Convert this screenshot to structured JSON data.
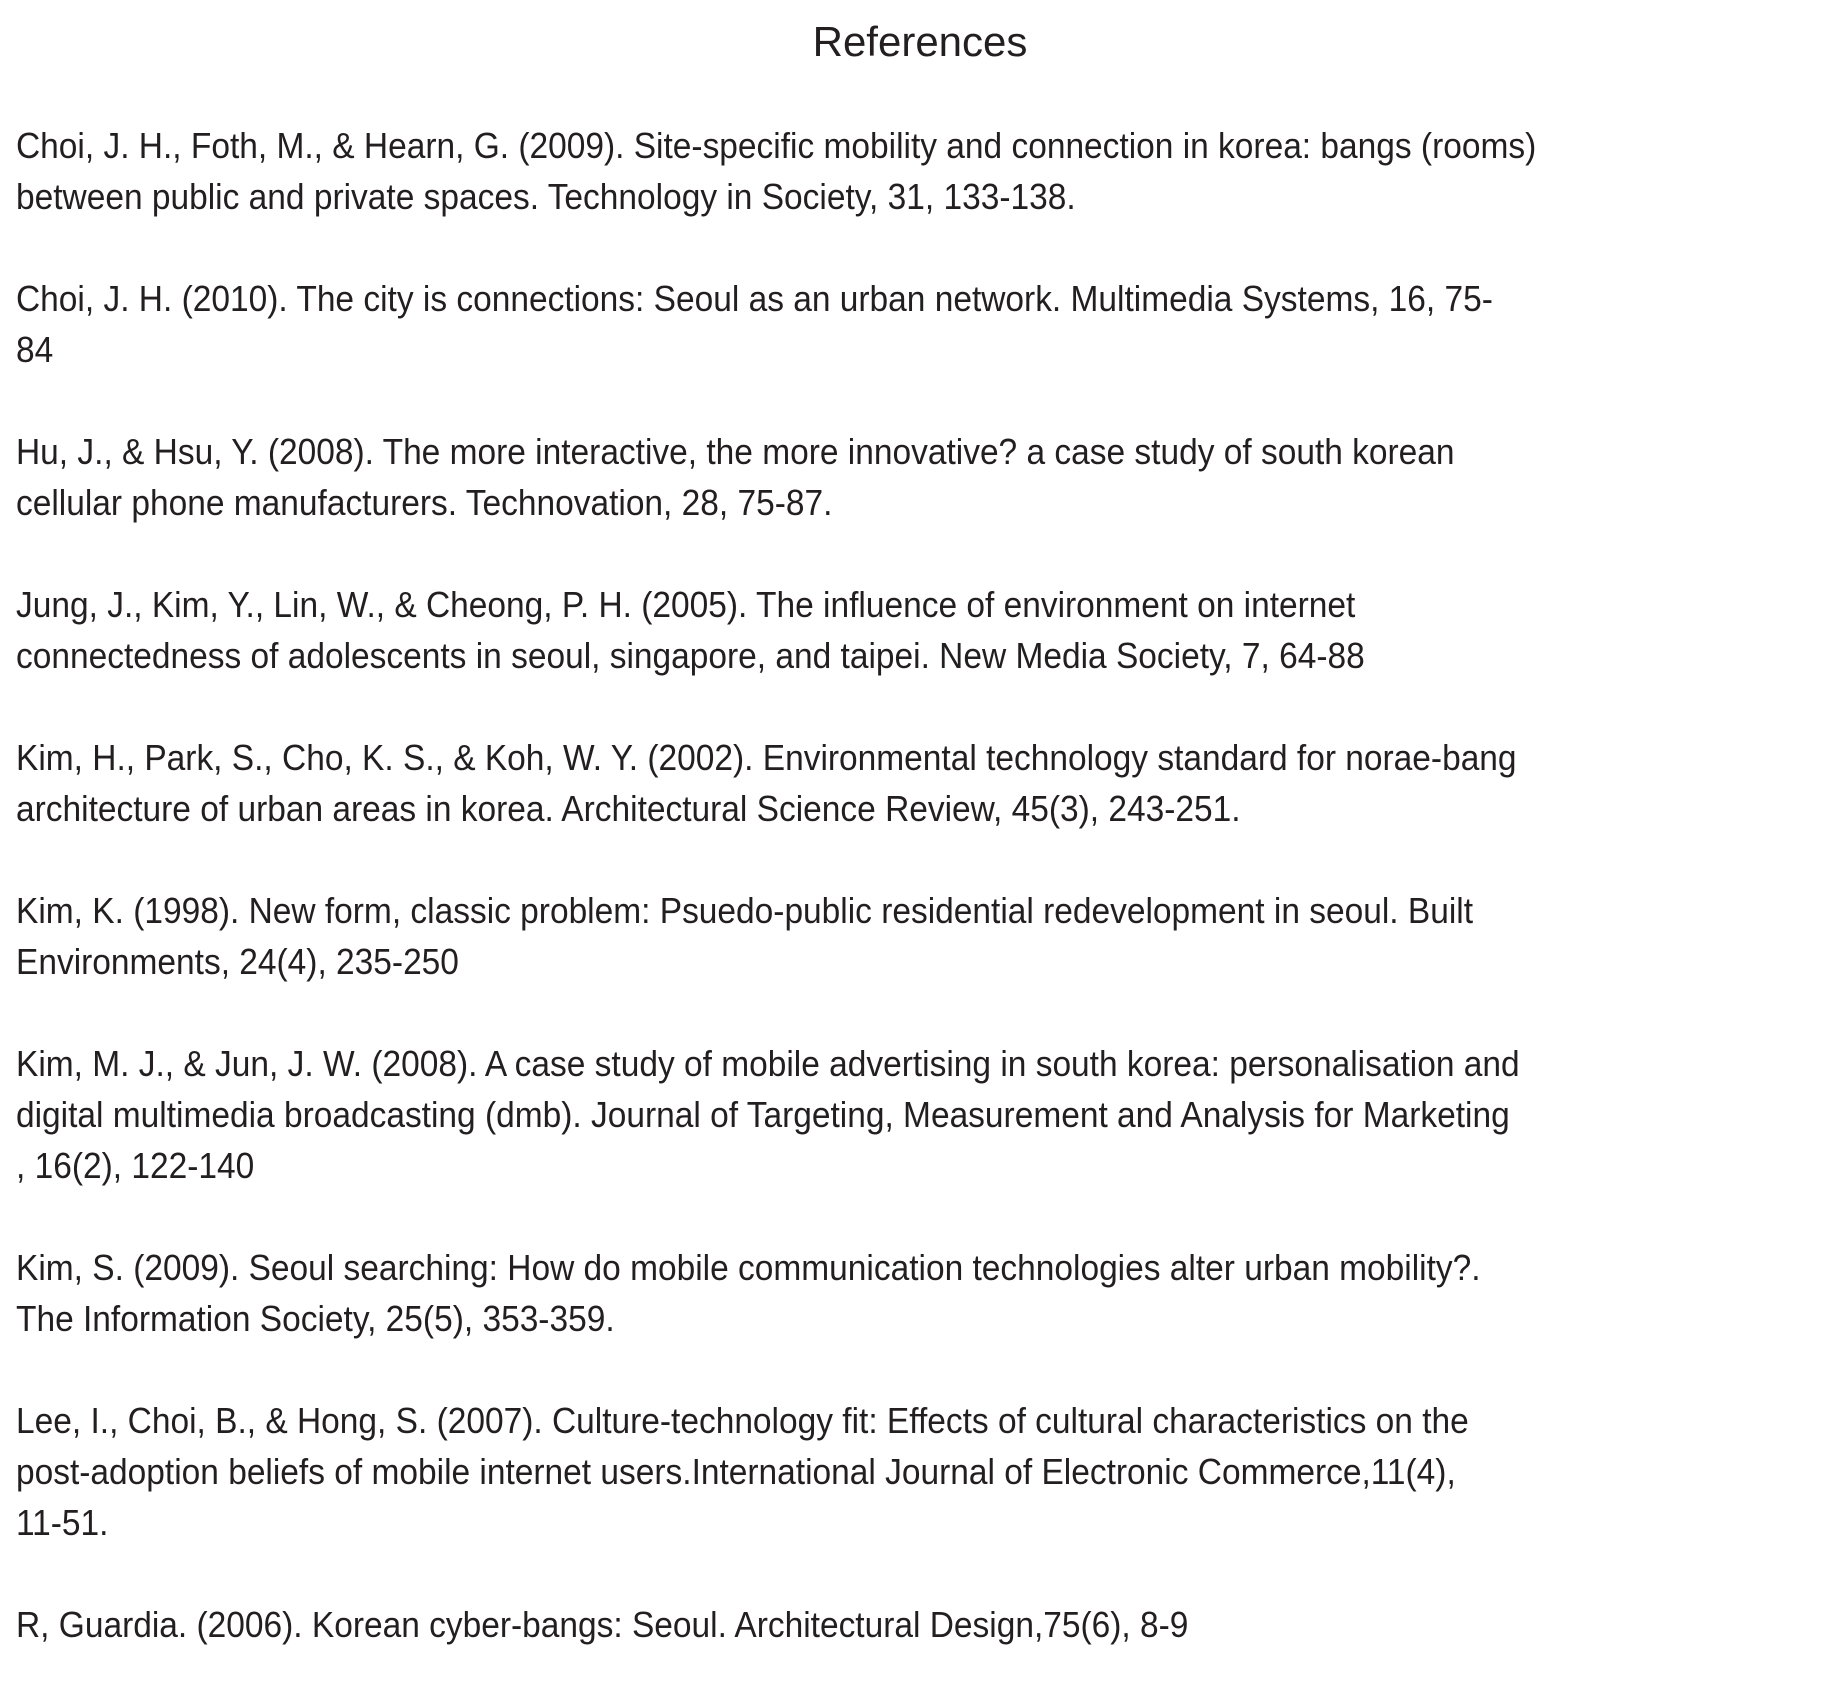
{
  "title": "References",
  "references": [
    {
      "lines": [
        "Choi, J. H., Foth, M., & Hearn, G. (2009). Site-specific mobility and connection in korea: bangs (rooms)",
        "between public and private spaces. Technology in Society, 31, 133-138."
      ]
    },
    {
      "lines": [
        "Choi, J. H. (2010). The city is connections: Seoul as an urban network. Multimedia Systems, 16, 75-",
        "84"
      ]
    },
    {
      "lines": [
        "Hu, J., & Hsu, Y. (2008). The more interactive, the more innovative? a case study of south korean",
        "cellular phone manufacturers. Technovation, 28, 75-87."
      ]
    },
    {
      "lines": [
        "Jung, J., Kim, Y., Lin, W., & Cheong, P. H. (2005). The influence of environment on internet",
        "connectedness of adolescents in seoul, singapore, and taipei. New Media Society, 7, 64-88"
      ]
    },
    {
      "lines": [
        "Kim, H., Park, S., Cho, K. S., & Koh, W. Y. (2002). Environmental technology standard for norae-bang",
        "architecture of urban areas in korea. Architectural Science Review, 45(3), 243-251."
      ]
    },
    {
      "lines": [
        "Kim, K. (1998). New form, classic problem: Psuedo-public residential redevelopment in seoul. Built",
        "Environments, 24(4), 235-250"
      ]
    },
    {
      "lines": [
        "Kim, M. J., & Jun, J. W. (2008). A case study of mobile advertising in south korea: personalisation and",
        "digital multimedia broadcasting (dmb). Journal of Targeting, Measurement and Analysis for Marketing",
        ", 16(2), 122-140"
      ]
    },
    {
      "lines": [
        "Kim, S. (2009). Seoul searching: How do mobile communication technologies alter urban mobility?.",
        "The Information Society, 25(5), 353-359."
      ]
    },
    {
      "lines": [
        "Lee, I., Choi, B., & Hong, S. (2007). Culture-technology fit: Effects of cultural characteristics on the",
        "post-adoption beliefs of mobile internet users.International Journal of Electronic Commerce,11(4),",
        "11-51."
      ]
    },
    {
      "lines": [
        "R, Guardia. (2006). Korean cyber-bangs: Seoul. Architectural Design,75(6), 8-9"
      ]
    }
  ]
}
